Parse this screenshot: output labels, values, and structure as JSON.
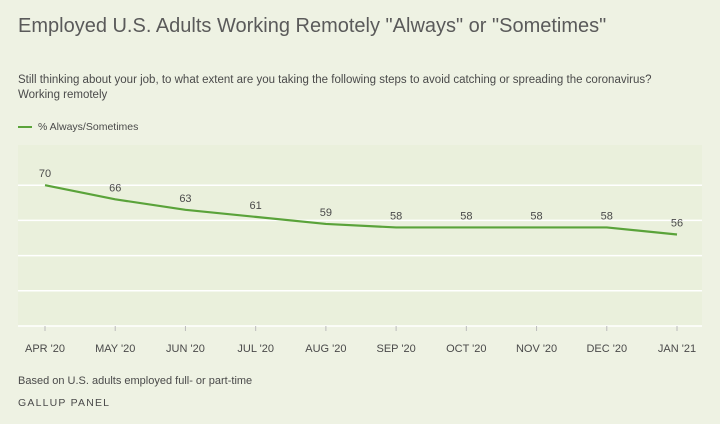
{
  "header": {
    "title": "Employed U.S. Adults Working Remotely \"Always\" or \"Sometimes\"",
    "subtitle": "Still thinking about your job, to what extent are you taking the following steps to avoid catching or spreading the coronavirus? Working remotely"
  },
  "footer": {
    "note": "Based on U.S. adults employed full- or part-time",
    "source": "GALLUP PANEL"
  },
  "colors": {
    "line": "#5aa33a",
    "grid": "#ffffff",
    "background": "#eef2e3"
  },
  "chart_data": {
    "type": "line",
    "categories": [
      "APR '20",
      "MAY '20",
      "JUN '20",
      "JUL '20",
      "AUG '20",
      "SEP '20",
      "OCT '20",
      "NOV '20",
      "DEC '20",
      "JAN '21"
    ],
    "series": [
      {
        "name": "% Always/Sometimes",
        "values": [
          70,
          66,
          63,
          61,
          59,
          58,
          58,
          58,
          58,
          56
        ]
      }
    ],
    "ylim": [
      30,
      80
    ],
    "yticks": [
      40,
      50,
      60,
      70
    ],
    "grid": true,
    "legend": "top-left",
    "data_labels": true
  }
}
